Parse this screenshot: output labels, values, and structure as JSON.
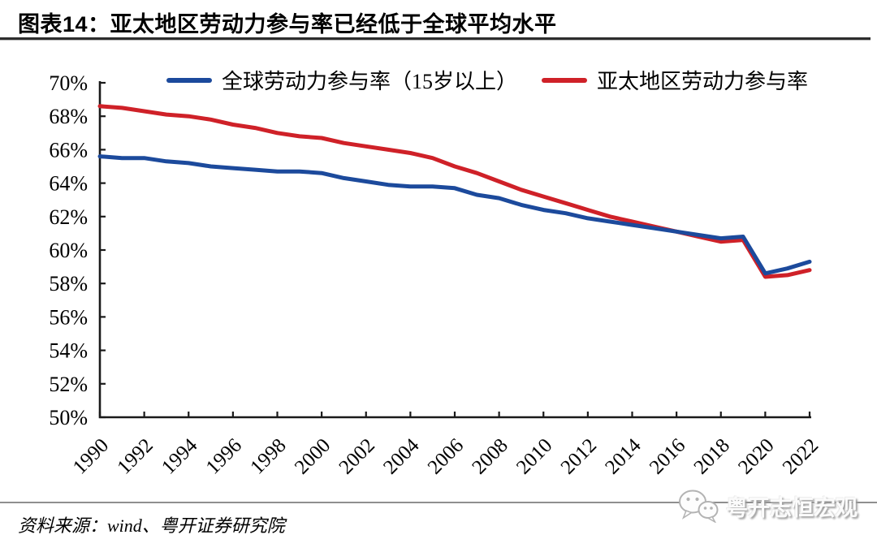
{
  "header": {
    "title": "图表14：亚太地区劳动力参与率已经低于全球平均水平"
  },
  "footer": {
    "source": "资料来源：wind、粤开证券研究院",
    "watermark": "粤开志恒宏观",
    "watermark_icon": "wechat-icon"
  },
  "chart_data": {
    "type": "line",
    "x": [
      1990,
      1991,
      1992,
      1993,
      1994,
      1995,
      1996,
      1997,
      1998,
      1999,
      2000,
      2001,
      2002,
      2003,
      2004,
      2005,
      2006,
      2007,
      2008,
      2009,
      2010,
      2011,
      2012,
      2013,
      2014,
      2015,
      2016,
      2017,
      2018,
      2019,
      2020,
      2021,
      2022
    ],
    "series": [
      {
        "name": "全球劳动力参与率（15岁以上）",
        "color": "#1c4a9c",
        "values": [
          65.6,
          65.5,
          65.5,
          65.3,
          65.2,
          65.0,
          64.9,
          64.8,
          64.7,
          64.7,
          64.6,
          64.3,
          64.1,
          63.9,
          63.8,
          63.8,
          63.7,
          63.3,
          63.1,
          62.7,
          62.4,
          62.2,
          61.9,
          61.7,
          61.5,
          61.3,
          61.1,
          60.9,
          60.7,
          60.8,
          58.6,
          58.9,
          59.3
        ]
      },
      {
        "name": "亚太地区劳动力参与率",
        "color": "#cf2128",
        "values": [
          68.6,
          68.5,
          68.3,
          68.1,
          68.0,
          67.8,
          67.5,
          67.3,
          67.0,
          66.8,
          66.7,
          66.4,
          66.2,
          66.0,
          65.8,
          65.5,
          65.0,
          64.6,
          64.1,
          63.6,
          63.2,
          62.8,
          62.4,
          62.0,
          61.7,
          61.4,
          61.1,
          60.8,
          60.5,
          60.6,
          58.4,
          58.5,
          58.8
        ]
      }
    ],
    "ylim": [
      50,
      70
    ],
    "ytick_step": 2,
    "ytick_suffix": "%",
    "xtick_step": 2,
    "legend_position": "top",
    "grid": false,
    "axis_color": "#1a1a1a"
  }
}
